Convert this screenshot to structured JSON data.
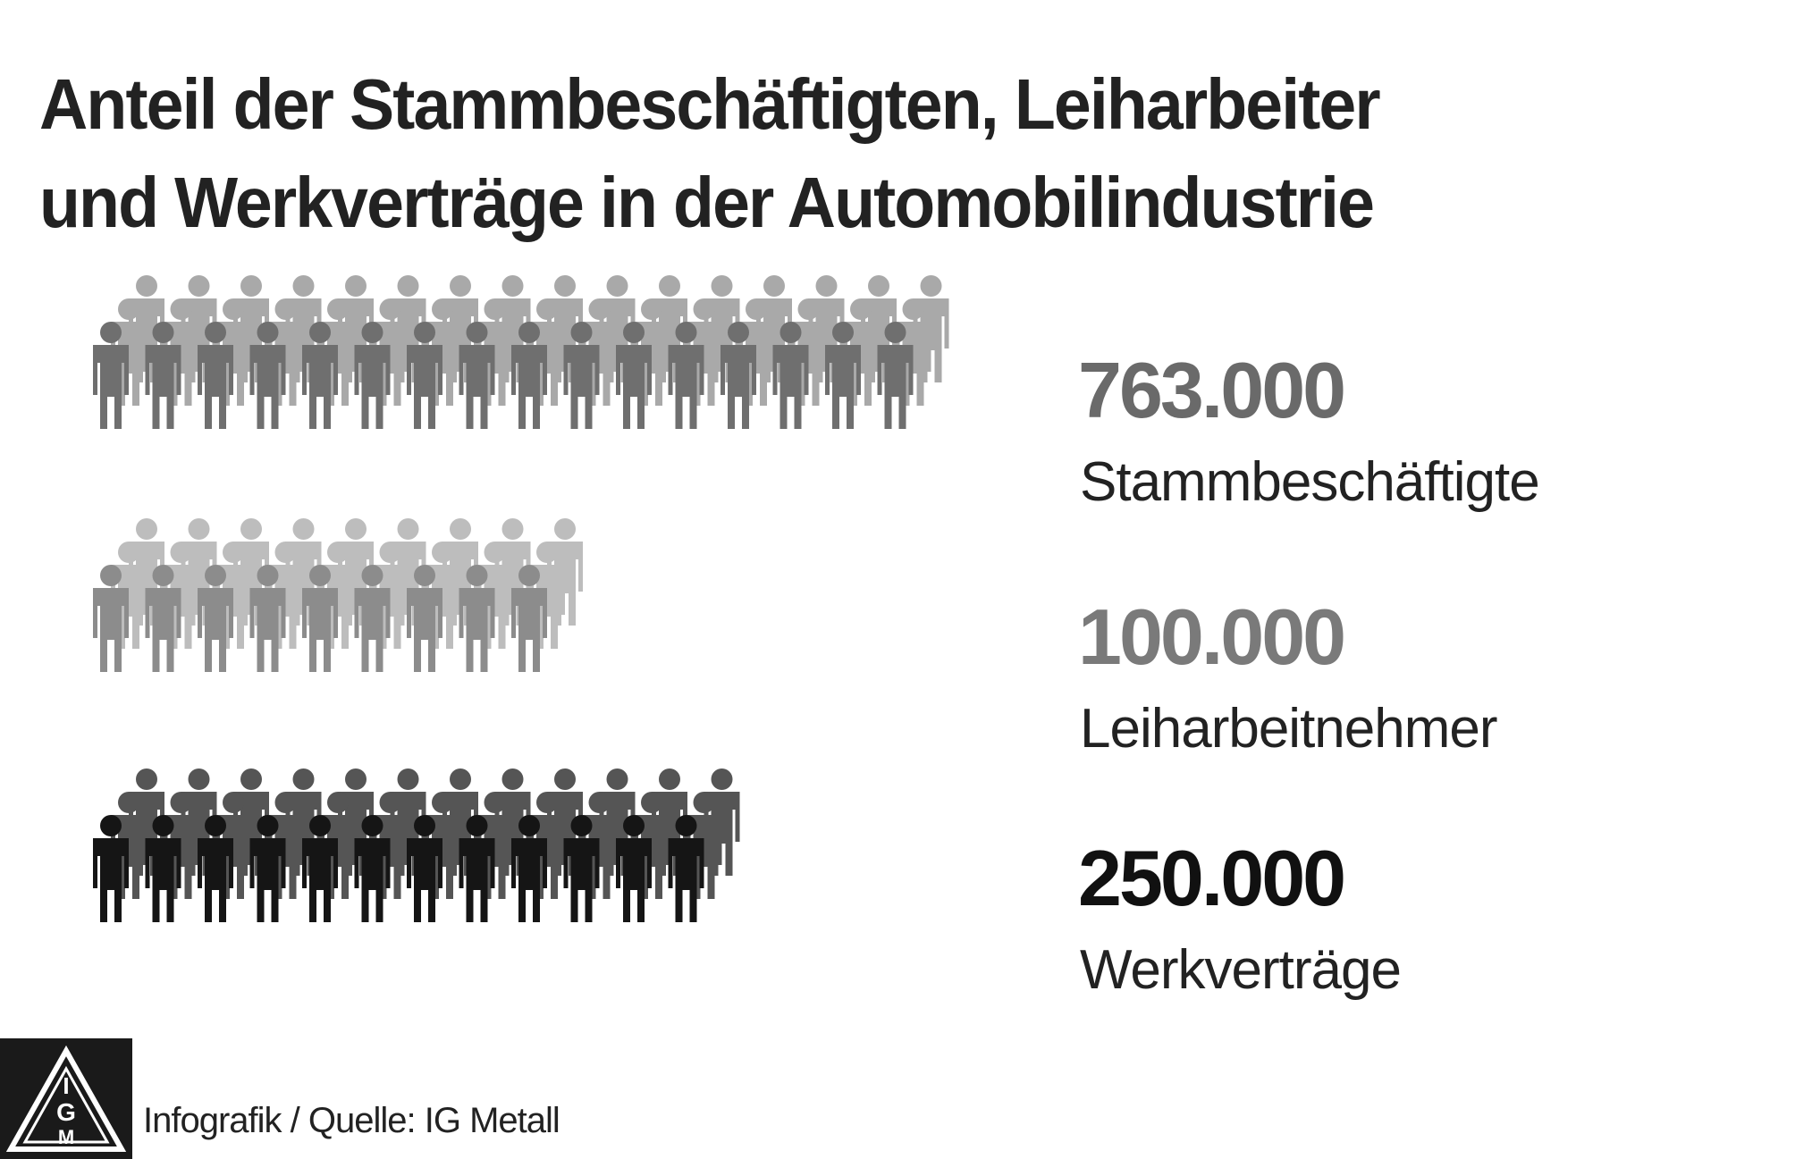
{
  "chart_data": {
    "type": "pictogram",
    "title_lines": [
      "Anteil der Stammbeschäftigten, Leiharbeiter",
      "und Werkverträge in der Automobilindustrie"
    ],
    "categories": [
      "Stammbeschäftigte",
      "Leiharbeitnehmer",
      "Werkverträge"
    ],
    "values": [
      763000,
      100000,
      250000
    ],
    "value_labels": [
      "763.000",
      "100.000",
      "250.000"
    ],
    "colors": {
      "Stammbeschäftigte": {
        "front": "#6f6f6f",
        "back": "#a9a9a9",
        "label": "#6a6a6a"
      },
      "Leiharbeitnehmer": {
        "front": "#8c8c8c",
        "back": "#bdbdbd",
        "label": "#7a7a7a"
      },
      "Werkverträge": {
        "front": "#151515",
        "back": "#555555",
        "label": "#111111"
      }
    },
    "figures_per_row_front": [
      16,
      9,
      12
    ],
    "figures_per_row_back": [
      16,
      9,
      12
    ]
  },
  "footer": {
    "logo_icon": "ig-metall-logo-icon",
    "source": "Infografik / Quelle: IG Metall"
  }
}
